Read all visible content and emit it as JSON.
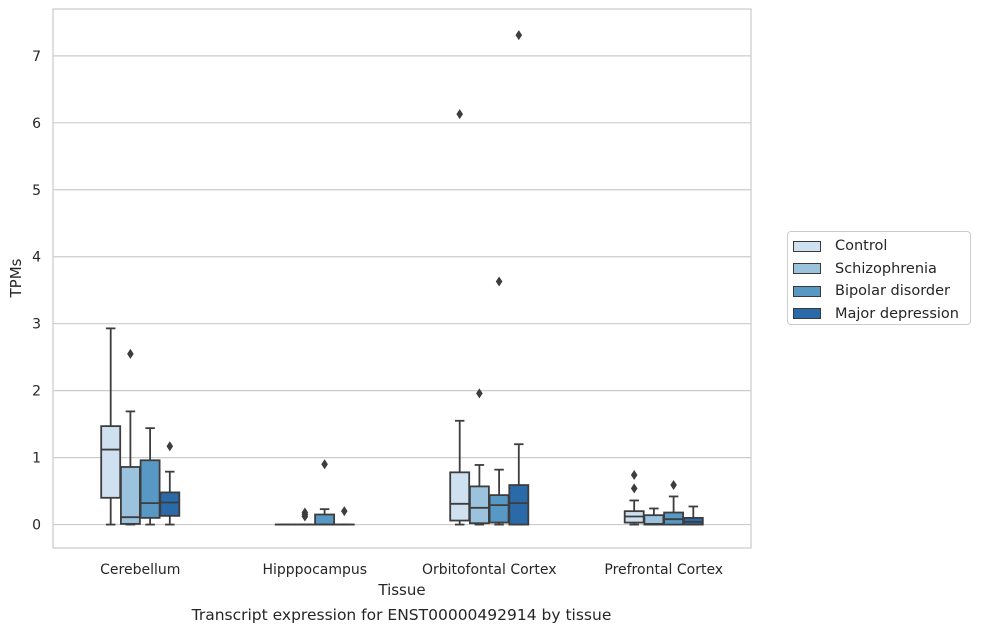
{
  "chart_data": {
    "type": "box",
    "xlabel": "Tissue",
    "ylabel": "TPMs",
    "caption": "Transcript expression for ENST00000492914 by tissue",
    "ylim": [
      -0.35,
      7.7
    ],
    "yticks": [
      "0",
      "1",
      "2",
      "3",
      "4",
      "5",
      "6",
      "7"
    ],
    "grid": "horizontal",
    "legend_position": "right",
    "categories": [
      "Cerebellum",
      "Hipppocampus",
      "Orbitofontal Cortex",
      "Prefrontal Cortex"
    ],
    "series": [
      {
        "name": "Control",
        "color": "#cfe1f1",
        "boxes": [
          {
            "whisker_low": 0.0,
            "q1": 0.4,
            "median": 1.12,
            "q3": 1.47,
            "whisker_high": 2.93,
            "outliers": []
          },
          {
            "whisker_low": 0.0,
            "q1": 0.0,
            "median": 0.0,
            "q3": 0.0,
            "whisker_high": 0.0,
            "outliers": []
          },
          {
            "whisker_low": 0.0,
            "q1": 0.06,
            "median": 0.31,
            "q3": 0.78,
            "whisker_high": 1.55,
            "outliers": [
              6.13
            ]
          },
          {
            "whisker_low": 0.0,
            "q1": 0.03,
            "median": 0.12,
            "q3": 0.2,
            "whisker_high": 0.36,
            "outliers": [
              0.54,
              0.74
            ]
          }
        ]
      },
      {
        "name": "Schizophrenia",
        "color": "#9cc3de",
        "boxes": [
          {
            "whisker_low": 0.0,
            "q1": 0.01,
            "median": 0.11,
            "q3": 0.86,
            "whisker_high": 1.69,
            "outliers": [
              2.55
            ]
          },
          {
            "whisker_low": 0.0,
            "q1": 0.0,
            "median": 0.0,
            "q3": 0.0,
            "whisker_high": 0.0,
            "outliers": [
              0.12,
              0.15,
              0.18
            ]
          },
          {
            "whisker_low": 0.0,
            "q1": 0.02,
            "median": 0.25,
            "q3": 0.57,
            "whisker_high": 0.89,
            "outliers": [
              1.96
            ]
          },
          {
            "whisker_low": 0.0,
            "q1": 0.0,
            "median": 0.01,
            "q3": 0.14,
            "whisker_high": 0.24,
            "outliers": []
          }
        ]
      },
      {
        "name": "Bipolar disorder",
        "color": "#5898c5",
        "boxes": [
          {
            "whisker_low": 0.0,
            "q1": 0.1,
            "median": 0.32,
            "q3": 0.96,
            "whisker_high": 1.44,
            "outliers": []
          },
          {
            "whisker_low": 0.0,
            "q1": 0.0,
            "median": 0.0,
            "q3": 0.15,
            "whisker_high": 0.23,
            "outliers": [
              0.9
            ]
          },
          {
            "whisker_low": 0.0,
            "q1": 0.03,
            "median": 0.29,
            "q3": 0.44,
            "whisker_high": 0.82,
            "outliers": [
              3.63
            ]
          },
          {
            "whisker_low": 0.0,
            "q1": 0.0,
            "median": 0.08,
            "q3": 0.18,
            "whisker_high": 0.42,
            "outliers": [
              0.59
            ]
          }
        ]
      },
      {
        "name": "Major depression",
        "color": "#2a6aa8",
        "boxes": [
          {
            "whisker_low": 0.0,
            "q1": 0.13,
            "median": 0.33,
            "q3": 0.48,
            "whisker_high": 0.79,
            "outliers": [
              1.17
            ]
          },
          {
            "whisker_low": 0.0,
            "q1": 0.0,
            "median": 0.0,
            "q3": 0.0,
            "whisker_high": 0.0,
            "outliers": [
              0.2
            ]
          },
          {
            "whisker_low": 0.0,
            "q1": 0.0,
            "median": 0.32,
            "q3": 0.59,
            "whisker_high": 1.2,
            "outliers": [
              7.31
            ]
          },
          {
            "whisker_low": 0.0,
            "q1": 0.0,
            "median": 0.04,
            "q3": 0.1,
            "whisker_high": 0.27,
            "outliers": []
          }
        ]
      }
    ]
  }
}
